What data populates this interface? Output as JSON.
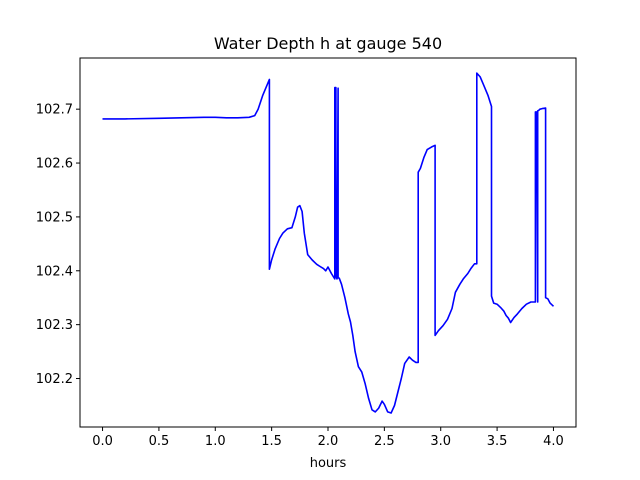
{
  "chart_data": {
    "type": "line",
    "title": "Water Depth h at gauge 540",
    "xlabel": "hours",
    "ylabel": "",
    "xlim": [
      -0.2,
      4.2
    ],
    "ylim": [
      102.11,
      102.795
    ],
    "xticks": [
      0.0,
      0.5,
      1.0,
      1.5,
      2.0,
      2.5,
      3.0,
      3.5,
      4.0
    ],
    "xtick_labels": [
      "0.0",
      "0.5",
      "1.0",
      "1.5",
      "2.0",
      "2.5",
      "3.0",
      "3.5",
      "4.0"
    ],
    "yticks": [
      102.2,
      102.3,
      102.4,
      102.5,
      102.6,
      102.7
    ],
    "ytick_labels": [
      "102.2",
      "102.3",
      "102.4",
      "102.5",
      "102.6",
      "102.7"
    ],
    "grid": false,
    "line_color": "#0000ff",
    "series": [
      {
        "x": [
          0.0,
          0.2,
          0.5,
          0.7,
          0.9,
          1.0,
          1.1,
          1.2,
          1.3,
          1.35,
          1.38,
          1.42,
          1.46,
          1.48,
          1.48,
          1.5,
          1.53,
          1.57,
          1.6,
          1.64,
          1.68,
          1.71,
          1.73,
          1.75,
          1.77,
          1.79,
          1.82,
          1.86,
          1.9,
          1.93,
          1.96,
          1.98,
          2.0,
          2.03,
          2.06,
          2.06,
          2.07,
          2.07,
          2.08,
          2.09,
          2.09,
          2.1,
          2.12,
          2.15,
          2.18,
          2.2,
          2.22,
          2.24,
          2.27,
          2.3,
          2.33,
          2.36,
          2.39,
          2.42,
          2.45,
          2.48,
          2.5,
          2.53,
          2.56,
          2.59,
          2.62,
          2.65,
          2.68,
          2.72,
          2.75,
          2.78,
          2.8,
          2.8,
          2.82,
          2.85,
          2.88,
          2.92,
          2.95,
          2.95,
          2.98,
          3.02,
          3.06,
          3.1,
          3.13,
          3.17,
          3.2,
          3.24,
          3.27,
          3.3,
          3.32,
          3.32,
          3.35,
          3.38,
          3.42,
          3.45,
          3.45,
          3.47,
          3.5,
          3.53,
          3.56,
          3.58,
          3.6,
          3.62,
          3.65,
          3.68,
          3.72,
          3.76,
          3.8,
          3.84,
          3.84,
          3.85,
          3.86,
          3.86,
          3.87,
          3.88,
          3.9,
          3.93,
          3.93,
          3.95,
          3.97,
          4.0
        ],
        "y": [
          102.682,
          102.682,
          102.683,
          102.684,
          102.685,
          102.685,
          102.684,
          102.684,
          102.685,
          102.688,
          102.7,
          102.725,
          102.745,
          102.755,
          102.403,
          102.42,
          102.44,
          102.46,
          102.47,
          102.478,
          102.48,
          102.5,
          102.518,
          102.521,
          102.51,
          102.47,
          102.43,
          102.42,
          102.412,
          102.408,
          102.404,
          102.4,
          102.407,
          102.395,
          102.385,
          102.74,
          102.74,
          102.39,
          102.385,
          102.739,
          102.387,
          102.386,
          102.375,
          102.35,
          102.32,
          102.305,
          102.28,
          102.25,
          102.222,
          102.212,
          102.19,
          102.163,
          102.142,
          102.138,
          102.145,
          102.158,
          102.152,
          102.138,
          102.136,
          102.15,
          102.175,
          102.2,
          102.228,
          102.24,
          102.234,
          102.23,
          102.23,
          102.583,
          102.59,
          102.61,
          102.625,
          102.63,
          102.633,
          102.28,
          102.289,
          102.298,
          102.31,
          102.33,
          102.36,
          102.375,
          102.385,
          102.395,
          102.405,
          102.413,
          102.413,
          102.767,
          102.76,
          102.745,
          102.725,
          102.705,
          102.353,
          102.34,
          102.338,
          102.332,
          102.325,
          102.317,
          102.312,
          102.304,
          102.313,
          102.32,
          102.33,
          102.338,
          102.342,
          102.342,
          102.695,
          102.695,
          102.342,
          102.697,
          102.698,
          102.7,
          102.701,
          102.702,
          102.35,
          102.348,
          102.34,
          102.334
        ]
      }
    ]
  }
}
